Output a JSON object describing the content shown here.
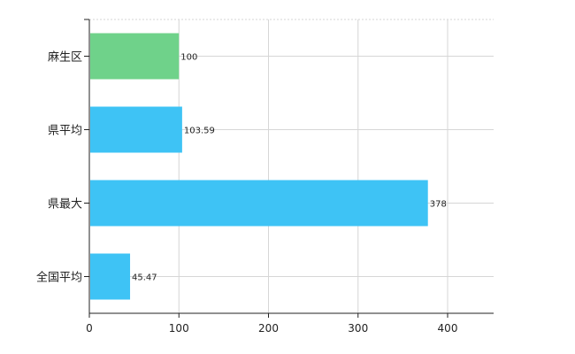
{
  "chart_data": {
    "type": "bar",
    "orientation": "horizontal",
    "categories": [
      "麻生区",
      "県平均",
      "県最大",
      "全国平均"
    ],
    "values": [
      100,
      103.59,
      378,
      45.47
    ],
    "value_labels": [
      "100",
      "103.59",
      "378",
      "45.47"
    ],
    "bar_colors": [
      "#6fd28a",
      "#3ec3f5",
      "#3ec3f5",
      "#3ec3f5"
    ],
    "xlim": [
      0,
      450
    ],
    "x_ticks": [
      0,
      100,
      200,
      300,
      400
    ],
    "x_tick_labels": [
      "0",
      "100",
      "200",
      "300",
      "400"
    ],
    "grid": true,
    "title": "",
    "xlabel": "",
    "ylabel": ""
  }
}
